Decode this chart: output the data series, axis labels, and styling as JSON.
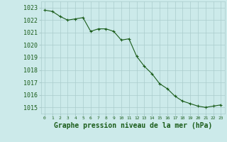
{
  "x": [
    0,
    1,
    2,
    3,
    4,
    5,
    6,
    7,
    8,
    9,
    10,
    11,
    12,
    13,
    14,
    15,
    16,
    17,
    18,
    19,
    20,
    21,
    22,
    23
  ],
  "y": [
    1022.8,
    1022.7,
    1022.3,
    1022.0,
    1022.1,
    1022.2,
    1021.1,
    1021.3,
    1021.3,
    1021.1,
    1020.4,
    1020.5,
    1019.1,
    1018.3,
    1017.7,
    1016.9,
    1016.5,
    1015.9,
    1015.5,
    1015.3,
    1015.1,
    1015.0,
    1015.1,
    1015.2
  ],
  "line_color": "#1a5c1a",
  "marker": "+",
  "marker_size": 3,
  "marker_color": "#1a5c1a",
  "bg_color": "#cceaea",
  "grid_color": "#aacccc",
  "title": "Graphe pression niveau de la mer (hPa)",
  "title_color": "#1a5c1a",
  "title_fontsize": 7,
  "tick_color": "#1a5c1a",
  "ytick_labels": [
    1015,
    1016,
    1017,
    1018,
    1019,
    1020,
    1021,
    1022,
    1023
  ],
  "ylim": [
    1014.5,
    1023.5
  ],
  "xlim": [
    -0.5,
    23.5
  ],
  "xtick_labels": [
    "0",
    "1",
    "2",
    "3",
    "4",
    "5",
    "6",
    "7",
    "8",
    "9",
    "10",
    "11",
    "12",
    "13",
    "14",
    "15",
    "16",
    "17",
    "18",
    "19",
    "20",
    "21",
    "22",
    "23"
  ],
  "ytick_fontsize": 6,
  "xtick_fontsize": 4.5,
  "linewidth": 0.8
}
